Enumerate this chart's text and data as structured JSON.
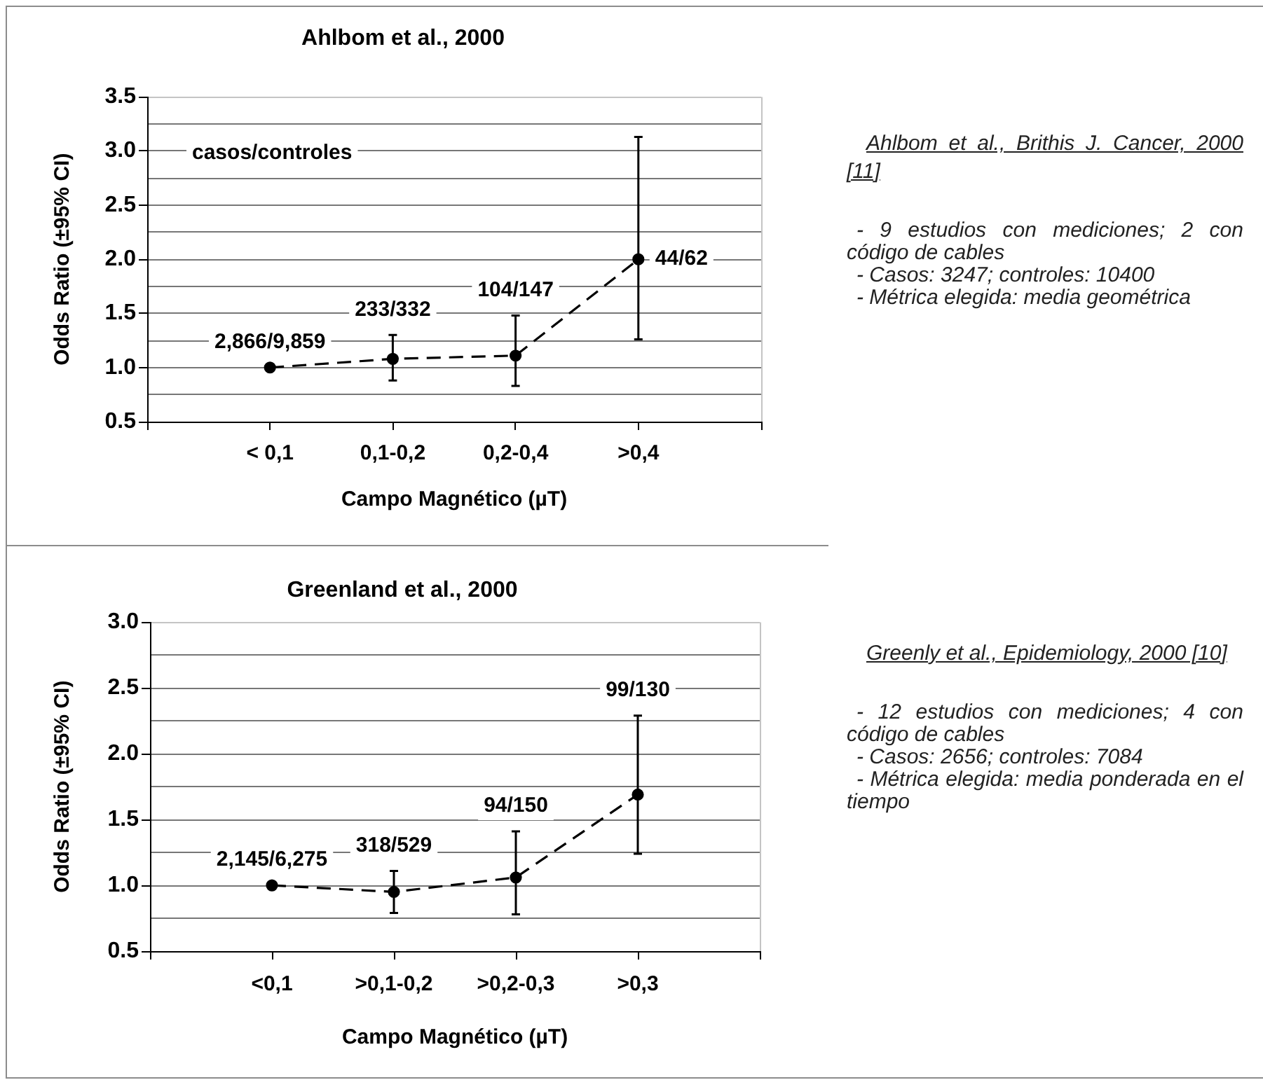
{
  "chart_data": [
    {
      "type": "line",
      "title": "Ahlbom et al., 2000",
      "xlabel": "Campo Magnético (µT)",
      "ylabel": "Odds Ratio (±95% CI)",
      "categories": [
        null,
        "< 0,1",
        "0,1-0,2",
        "0,2-0,4",
        ">0,4",
        null
      ],
      "values": [
        null,
        1.0,
        1.08,
        1.11,
        2.0,
        null
      ],
      "errors": [
        null,
        null,
        [
          0.88,
          1.3
        ],
        [
          0.83,
          1.48
        ],
        [
          1.26,
          3.13
        ],
        null
      ],
      "color": "#000000",
      "marker": "circle",
      "line_style": "dashed",
      "grid": "y",
      "ylim": [
        0.5,
        3.5
      ],
      "yticks": [
        {
          "value": 0.5,
          "label": "0.5"
        },
        {
          "value": 0.75,
          "label": null
        },
        {
          "value": 1,
          "label": "1.0"
        },
        {
          "value": 1.25,
          "label": null
        },
        {
          "value": 1.5,
          "label": "1.5"
        },
        {
          "value": 1.75,
          "label": null
        },
        {
          "value": 2,
          "label": "2.0"
        },
        {
          "value": 2.25,
          "label": null
        },
        {
          "value": 2.5,
          "label": "2.5"
        },
        {
          "value": 2.75,
          "label": null
        },
        {
          "value": 3,
          "label": "3.0"
        },
        {
          "value": 3.25,
          "label": null
        },
        {
          "value": 3.5,
          "label": "3.5"
        }
      ],
      "annotations": [
        "casos/controles",
        {
          "text": "2,866/9,859",
          "x": "< 0,1",
          "y": 1.0
        },
        {
          "text": "233/332",
          "x": "0,1-0,2",
          "y": 1.3
        },
        {
          "text": "104/147",
          "x": "0,2-0,4",
          "y": 1.48
        },
        {
          "text": "44/62",
          "x": ">0,4",
          "y": 2.0
        }
      ]
    },
    {
      "type": "other",
      "title": "Ahlbom et al., Brithis J. Cancer, 2000 [11]",
      "annotations": [
        "- 9 estudios con mediciones; 2 con código de cables",
        "- Casos: 3247; controles: 10400",
        "- Métrica elegida: media geométrica"
      ]
    },
    {
      "type": "line",
      "title": "Greenland et al., 2000",
      "xlabel": "Campo Magnético (µT)",
      "ylabel": "Odds Ratio (±95% CI)",
      "categories": [
        null,
        "<0,1",
        ">0,1-0,2",
        ">0,2-0,3",
        ">0,3",
        null
      ],
      "values": [
        null,
        1.0,
        0.95,
        1.06,
        1.69,
        null
      ],
      "errors": [
        null,
        null,
        [
          0.79,
          1.11
        ],
        [
          0.78,
          1.41
        ],
        [
          1.24,
          2.29
        ],
        null
      ],
      "color": "#000000",
      "marker": "circle",
      "line_style": "dashed",
      "grid": "y",
      "ylim": [
        0.5,
        3.0
      ],
      "yticks": [
        {
          "value": 0.5,
          "label": "0.5"
        },
        {
          "value": 0.75,
          "label": null
        },
        {
          "value": 1,
          "label": "1.0"
        },
        {
          "value": 1.25,
          "label": null
        },
        {
          "value": 1.5,
          "label": "1.5"
        },
        {
          "value": 1.75,
          "label": null
        },
        {
          "value": 2,
          "label": "2.0"
        },
        {
          "value": 2.25,
          "label": null
        },
        {
          "value": 2.5,
          "label": "2.5"
        },
        {
          "value": 2.75,
          "label": null
        },
        {
          "value": 3,
          "label": "3.0"
        }
      ],
      "annotations": [
        {
          "text": "2,145/6,275",
          "x": "<0,1",
          "y": 1.0
        },
        {
          "text": "318/529",
          "x": ">0,1-0,2",
          "y": 1.11
        },
        {
          "text": "94/150",
          "x": ">0,2-0,3",
          "y": 1.41
        },
        {
          "text": "99/130",
          "x": ">0,3",
          "y": 2.29
        }
      ]
    },
    {
      "type": "other",
      "title": "Greenly et al., Epidemiology, 2000 [10]",
      "annotations": [
        "- 12 estudios con mediciones; 4 con código de cables",
        "- Casos: 2656; controles: 7084",
        "- Métrica elegida: media ponderada en el tiempo"
      ]
    }
  ]
}
